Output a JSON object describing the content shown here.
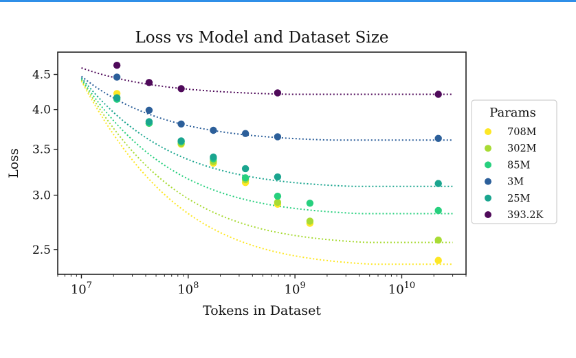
{
  "colors": {
    "accent_bar": "#2f8fe8",
    "series": {
      "708M": "#fde725",
      "302M": "#a8db34",
      "85M": "#27d07e",
      "3M": "#2c5f9a",
      "25M": "#1aa58f",
      "393.2K": "#4f0a5a"
    }
  },
  "chart_data": {
    "type": "scatter",
    "title": "Loss vs Model and Dataset Size",
    "xlabel": "Tokens in Dataset",
    "ylabel": "Loss",
    "xscale": "log",
    "yscale": "log",
    "xlim": [
      6000000,
      40000000000
    ],
    "ylim": [
      2.3,
      4.85
    ],
    "xticks": [
      {
        "value": 10000000,
        "base": "10",
        "exp": "7"
      },
      {
        "value": 100000000,
        "base": "10",
        "exp": "8"
      },
      {
        "value": 1000000000,
        "base": "10",
        "exp": "9"
      },
      {
        "value": 10000000000,
        "base": "10",
        "exp": "10"
      }
    ],
    "yticks": [
      {
        "value": 2.5,
        "label": "2.5"
      },
      {
        "value": 3.0,
        "label": "3.0"
      },
      {
        "value": 3.5,
        "label": "3.5"
      },
      {
        "value": 4.0,
        "label": "4.0"
      },
      {
        "value": 4.5,
        "label": "4.5"
      }
    ],
    "legend": {
      "title": "Params",
      "position": "right"
    },
    "series": [
      {
        "name": "708M",
        "points": [
          [
            21500000,
            4.22
          ],
          [
            43000000,
            3.82
          ],
          [
            86000000,
            3.56
          ],
          [
            172000000,
            3.34
          ],
          [
            344000000,
            3.13
          ],
          [
            688000000,
            2.91
          ],
          [
            1380000000,
            2.73
          ],
          [
            22000000000,
            2.41
          ]
        ],
        "fit": {
          "x_start": 10000000,
          "x_end": 30000000000,
          "y_start": 4.4,
          "y_end": 2.38
        }
      },
      {
        "name": "302M",
        "points": [
          [
            21500000,
            4.16
          ],
          [
            43000000,
            3.82
          ],
          [
            86000000,
            3.57
          ],
          [
            172000000,
            3.36
          ],
          [
            344000000,
            3.16
          ],
          [
            688000000,
            2.93
          ],
          [
            1380000000,
            2.75
          ],
          [
            22000000000,
            2.58
          ]
        ],
        "fit": {
          "x_start": 10000000,
          "x_end": 30000000000,
          "y_start": 4.42,
          "y_end": 2.56
        }
      },
      {
        "name": "85M",
        "points": [
          [
            21500000,
            4.14
          ],
          [
            43000000,
            3.82
          ],
          [
            86000000,
            3.59
          ],
          [
            172000000,
            3.39
          ],
          [
            344000000,
            3.18
          ],
          [
            688000000,
            2.99
          ],
          [
            1380000000,
            2.92
          ],
          [
            22000000000,
            2.85
          ]
        ],
        "fit": {
          "x_start": 10000000,
          "x_end": 30000000000,
          "y_start": 4.43,
          "y_end": 2.82
        }
      },
      {
        "name": "3M",
        "points": [
          [
            21500000,
            4.46
          ],
          [
            43000000,
            3.99
          ],
          [
            86000000,
            3.81
          ],
          [
            172000000,
            3.73
          ],
          [
            344000000,
            3.69
          ],
          [
            688000000,
            3.65
          ],
          [
            22000000000,
            3.63
          ]
        ],
        "fit": {
          "x_start": 10000000,
          "x_end": 30000000000,
          "y_start": 4.47,
          "y_end": 3.61
        }
      },
      {
        "name": "25M",
        "points": [
          [
            21500000,
            4.16
          ],
          [
            43000000,
            3.84
          ],
          [
            86000000,
            3.6
          ],
          [
            172000000,
            3.41
          ],
          [
            344000000,
            3.28
          ],
          [
            688000000,
            3.19
          ],
          [
            22000000000,
            3.12
          ]
        ],
        "fit": {
          "x_start": 10000000,
          "x_end": 30000000000,
          "y_start": 4.45,
          "y_end": 3.09
        }
      },
      {
        "name": "393.2K",
        "points": [
          [
            21500000,
            4.64
          ],
          [
            43000000,
            4.38
          ],
          [
            86000000,
            4.29
          ],
          [
            688000000,
            4.23
          ],
          [
            22000000000,
            4.21
          ]
        ],
        "fit": {
          "x_start": 10000000,
          "x_end": 30000000000,
          "y_start": 4.6,
          "y_end": 4.21
        }
      }
    ]
  }
}
